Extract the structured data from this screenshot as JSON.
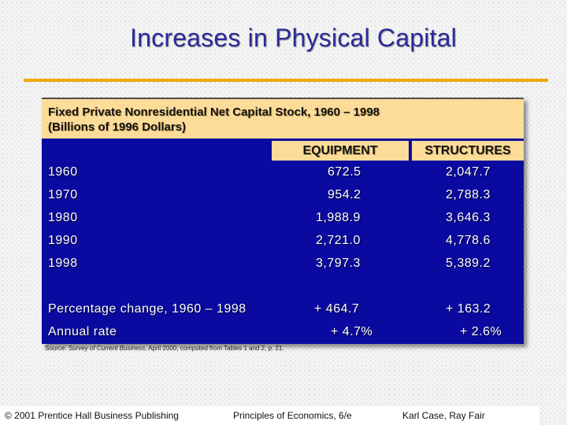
{
  "title": "Increases in Physical Capital",
  "table": {
    "header_line1": "Fixed Private Nonresidential Net Capital Stock, 1960 – 1998",
    "header_line2": "(Billions of 1996 Dollars)",
    "columns": [
      "EQUIPMENT",
      "STRUCTURES"
    ],
    "rows": [
      {
        "label": "1960",
        "equipment": "672.5",
        "structures": "2,047.7"
      },
      {
        "label": "1970",
        "equipment": "954.2",
        "structures": "2,788.3"
      },
      {
        "label": "1980",
        "equipment": "1,988.9",
        "structures": "3,646.3"
      },
      {
        "label": "1990",
        "equipment": "2,721.0",
        "structures": "4,778.6"
      },
      {
        "label": "1998",
        "equipment": "3,797.3",
        "structures": "5,389.2"
      }
    ],
    "pct_change": {
      "label": "Percentage change, 1960 – 1998",
      "equipment": "+ 464.7",
      "structures": "+ 163.2"
    },
    "annual_rate": {
      "label": "Annual rate",
      "equipment": "+ 4.7%",
      "structures": "+ 2.6%"
    }
  },
  "source": {
    "prefix": "Source:",
    "publication": "Survey of Current Business",
    "rest": ", April 2000, computed from Tables 1 and 2, p. 21."
  },
  "footer": {
    "copyright": "© 2001 Prentice Hall Business Publishing",
    "book": "Principles of Economics, 6/e",
    "authors": "Karl Case, Ray Fair"
  }
}
